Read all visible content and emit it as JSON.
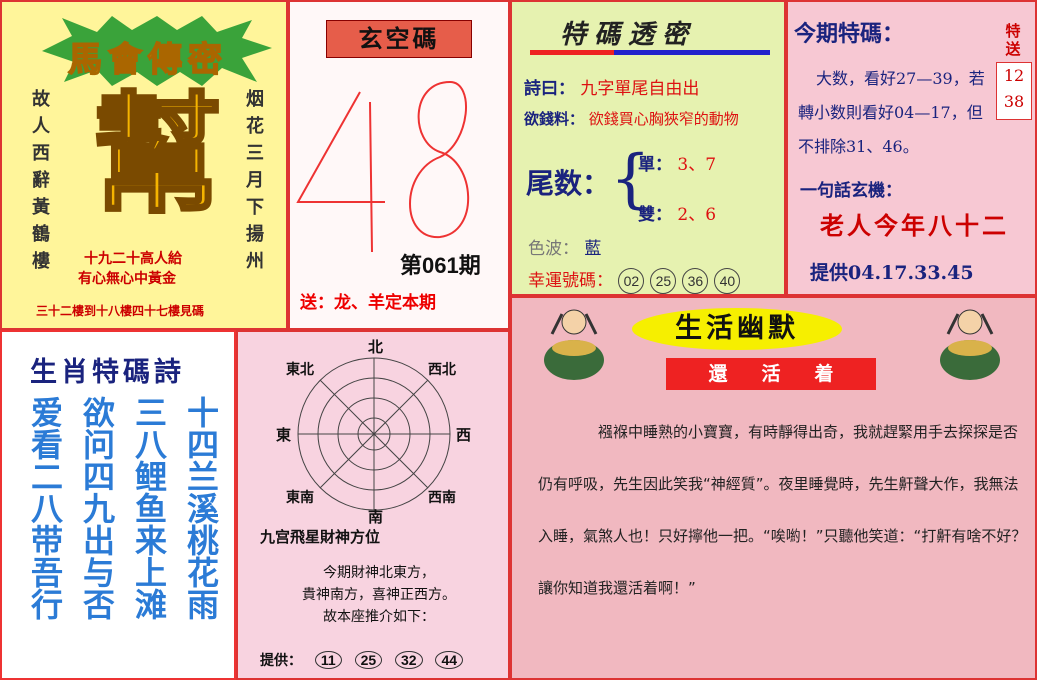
{
  "top_left": {
    "title": "馬會傳密",
    "big_char": "幫",
    "left_col": "故人西辭黃鶴樓",
    "right_col": "烟花三月下揚州",
    "line1": "十九二十高人給",
    "line2": "有心無心中黃金",
    "bottom_line": "三十二樓到十八樓四十七樓見碼"
  },
  "xuankong": {
    "title": "玄空碼",
    "handwritten_numbers": "48",
    "issue": "第061期",
    "send": "送：龙、羊定本期"
  },
  "secret": {
    "title": "特碼透密",
    "poem_label": "詩曰：",
    "poem_value": "九字單尾自由出",
    "money_label": "欲錢料：",
    "money_value": "欲錢買心胸狹窄的動物",
    "tail_label": "尾数：",
    "single_label": "單：",
    "single_value": "3、7",
    "double_label": "雙：",
    "double_value": "2、6",
    "color_label": "色波：",
    "color_value": "藍",
    "lucky_label": "幸運號碼：",
    "lucky_numbers": [
      "02",
      "25",
      "36",
      "40"
    ]
  },
  "current": {
    "title": "今期特碼：",
    "side_label": "特送",
    "box_numbers": [
      "12",
      "38"
    ],
    "text": "大数，看好27—39，若轉小数則看好04—17，但不排除31、46。",
    "riddle_label": "一句話玄機：",
    "riddle": "老人今年八十二",
    "provide": "提供04.17.33.45"
  },
  "poem": {
    "title": "生肖特碼詩",
    "columns": [
      "爱看二八带吾行",
      "欲问四九出与否",
      "三八鲤鱼来上滩",
      "十四兰溪桃花雨"
    ]
  },
  "compass": {
    "directions": {
      "n": "北",
      "s": "南",
      "e": "東",
      "w": "西",
      "ne": "東北",
      "nw": "西北",
      "se": "東南",
      "sw": "西南"
    },
    "caption": "九宫飛星財神方位",
    "text_lines": [
      "今期財神北東方，",
      "貴神南方，喜神正西方。",
      "故本座推介如下："
    ],
    "provide_label": "提供：",
    "provide_numbers": [
      "11",
      "25",
      "32",
      "44"
    ]
  },
  "humor": {
    "title": "生活幽默",
    "subtitle": "還活着",
    "body": "襁褓中睡熟的小寶寶，有時靜得出奇，我就趕緊用手去探探是否仍有呼吸，先生因此笑我“神經質”。夜里睡覺時，先生鼾聲大作，我無法入睡，氣煞人也！只好擰他一把。“唉喲！”只聽他笑道：“打鼾有啥不好？讓你知道我還活着啊！”"
  },
  "colors": {
    "border": "#dd3333",
    "accent_red": "#dd1111",
    "navy": "#1a237e",
    "poem_blue": "#2b7bd6"
  }
}
